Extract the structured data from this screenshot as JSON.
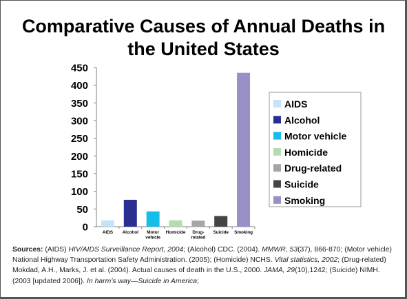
{
  "chart_data": {
    "type": "bar",
    "title": "Comparative Causes of Annual Deaths in the United States",
    "xlabel": "",
    "ylabel": "",
    "ylim": [
      0,
      450
    ],
    "yticks": [
      0,
      50,
      100,
      150,
      200,
      250,
      300,
      350,
      400,
      450
    ],
    "grid": false,
    "legend_position": "right",
    "categories": [
      {
        "key": "aids",
        "legend": "AIDS",
        "tick": [
          "AIDS"
        ],
        "value": 18,
        "color": "#c6e4f7"
      },
      {
        "key": "alcohol",
        "legend": "Alcohol",
        "tick": [
          "Alcohol"
        ],
        "value": 76,
        "color": "#2a2d91"
      },
      {
        "key": "motor",
        "legend": "Motor vehicle",
        "tick": [
          "Motor",
          "vehicle"
        ],
        "value": 43,
        "color": "#17bde9"
      },
      {
        "key": "homicide",
        "legend": "Homicide",
        "tick": [
          "Homicide"
        ],
        "value": 18,
        "color": "#b3dcb3"
      },
      {
        "key": "drug",
        "legend": "Drug-related",
        "tick": [
          "Drug-",
          "related"
        ],
        "value": 17,
        "color": "#a6a6a6"
      },
      {
        "key": "suicide",
        "legend": "Suicide",
        "tick": [
          "Suicide"
        ],
        "value": 30,
        "color": "#444444"
      },
      {
        "key": "smoking",
        "legend": "Smoking",
        "tick": [
          "Smoking"
        ],
        "value": 435,
        "color": "#9b8fc7"
      }
    ]
  },
  "sources": {
    "label": "Sources:",
    "parts": [
      {
        "t": " (AIDS) "
      },
      {
        "t": "HIV/AIDS Surveillance Report, 2004",
        "i": true
      },
      {
        "t": "; (Alcohol) CDC. (2004). "
      },
      {
        "t": "MMWR, 53",
        "i": true
      },
      {
        "t": "(37), 866-870; (Motor vehicle) National Highway Transportation Safety Administration. (2005); (Homicide) NCHS. "
      },
      {
        "t": "Vital statistics, 2002",
        "i": true
      },
      {
        "t": "; (Drug-related) Mokdad, A.H., Marks, J. et al. (2004). Actual causes of death in the U.S., 2000. "
      },
      {
        "t": "JAMA, 29",
        "i": true
      },
      {
        "t": "(10),1242; (Suicide) NIMH. (2003 [updated 2006]). "
      },
      {
        "t": "In harm’s way—Suicide in America",
        "i": true
      },
      {
        "t": ";"
      }
    ]
  }
}
